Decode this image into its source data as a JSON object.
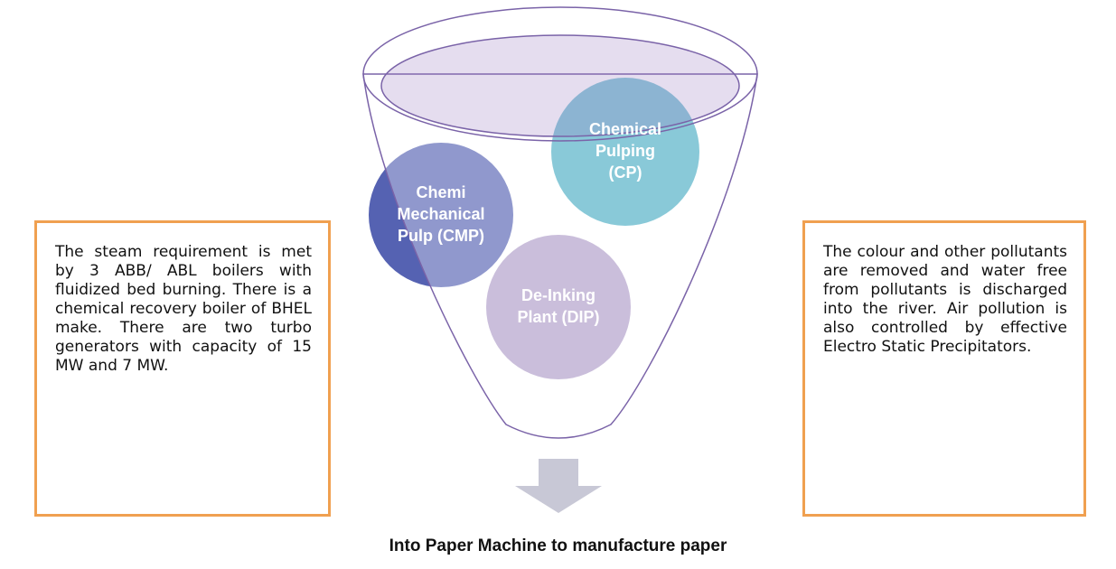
{
  "nodes": [
    {
      "lines": [
        "Chemi",
        "Mechanical",
        "Pulp (CMP)"
      ]
    },
    {
      "lines": [
        "Chemical",
        "Pulping",
        "(CP)"
      ]
    },
    {
      "lines": [
        "De-Inking",
        "Plant (DIP)"
      ]
    }
  ],
  "left_box": {
    "text": "The steam requirement is met by 3 ABB/ ABL boilers with fluidized bed burning. There is a chemical recovery boiler of BHEL make. There are two turbo generators with capacity of 15 MW and 7 MW."
  },
  "right_box": {
    "text": "The colour and other pollutants are removed and water free from pollutants is discharged into the river. Air pollution is also controlled by effective Electro Static Precipitators."
  },
  "caption": "Into Paper Machine to manufacture paper"
}
